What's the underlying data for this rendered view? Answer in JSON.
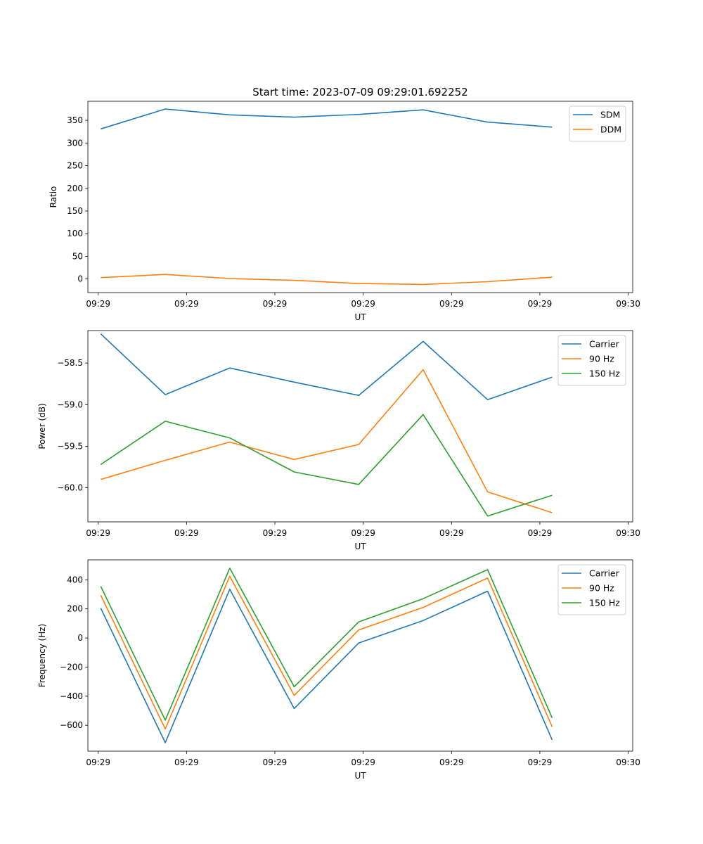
{
  "figure": {
    "title": "Start time: 2023-07-09 09:29:01.692252"
  },
  "x_ticks": [
    "09:29",
    "09:29",
    "09:29",
    "09:29",
    "09:29",
    "09:29",
    "09:30"
  ],
  "colors": {
    "blue": "#1f77b4",
    "orange": "#ff7f0e",
    "green": "#2ca02c"
  },
  "chart_data": [
    {
      "type": "line",
      "title": "Start time: 2023-07-09 09:29:01.692252",
      "xlabel": "UT",
      "ylabel": "Ratio",
      "x": [
        1,
        2,
        3,
        4,
        5,
        6,
        7,
        8
      ],
      "xlim": [
        0.8,
        9.25
      ],
      "ylim": [
        -30,
        392
      ],
      "yticks": [
        0,
        50,
        100,
        150,
        200,
        250,
        300,
        350
      ],
      "ytick_labels": [
        "0",
        "50",
        "100",
        "150",
        "200",
        "250",
        "300",
        "350"
      ],
      "legend_position": "top-right",
      "series": [
        {
          "name": "SDM",
          "color": "#1f77b4",
          "values": [
            331,
            375,
            362,
            357,
            363,
            373,
            346,
            335
          ]
        },
        {
          "name": "DDM",
          "color": "#ff7f0e",
          "values": [
            3,
            10,
            1,
            -3,
            -10,
            -12,
            -6,
            4
          ]
        }
      ]
    },
    {
      "type": "line",
      "title": "",
      "xlabel": "UT",
      "ylabel": "Power (dB)",
      "x": [
        1,
        2,
        3,
        4,
        5,
        6,
        7,
        8
      ],
      "xlim": [
        0.8,
        9.25
      ],
      "ylim": [
        -60.41,
        -58.11
      ],
      "yticks": [
        -58.5,
        -59.0,
        -59.5,
        -60.0
      ],
      "ytick_labels": [
        "−58.5",
        "−59.0",
        "−59.5",
        "−60.0"
      ],
      "legend_position": "top-right",
      "series": [
        {
          "name": "Carrier",
          "color": "#1f77b4",
          "values": [
            -58.15,
            -58.88,
            -58.56,
            -58.73,
            -58.89,
            -58.24,
            -58.94,
            -58.67
          ]
        },
        {
          "name": "90 Hz",
          "color": "#ff7f0e",
          "values": [
            -59.9,
            -59.67,
            -59.45,
            -59.66,
            -59.48,
            -58.58,
            -60.05,
            -60.3
          ]
        },
        {
          "name": "150 Hz",
          "color": "#2ca02c",
          "values": [
            -59.72,
            -59.2,
            -59.4,
            -59.81,
            -59.96,
            -59.12,
            -60.34,
            -60.09
          ]
        }
      ]
    },
    {
      "type": "line",
      "title": "",
      "xlabel": "UT",
      "ylabel": "Frequency (Hz)",
      "x": [
        1,
        2,
        3,
        4,
        5,
        6,
        7,
        8
      ],
      "xlim": [
        0.8,
        9.25
      ],
      "ylim": [
        -778,
        537
      ],
      "yticks": [
        400,
        200,
        0,
        -200,
        -400,
        -600
      ],
      "ytick_labels": [
        "400",
        "200",
        "0",
        "−200",
        "−400",
        "−600"
      ],
      "legend_position": "top-right",
      "series": [
        {
          "name": "Carrier",
          "color": "#1f77b4",
          "values": [
            205,
            -720,
            335,
            -485,
            -35,
            120,
            322,
            -700
          ]
        },
        {
          "name": "90 Hz",
          "color": "#ff7f0e",
          "values": [
            295,
            -625,
            425,
            -395,
            55,
            210,
            412,
            -610
          ]
        },
        {
          "name": "150 Hz",
          "color": "#2ca02c",
          "values": [
            355,
            -565,
            480,
            -335,
            110,
            270,
            470,
            -550
          ]
        }
      ]
    }
  ]
}
